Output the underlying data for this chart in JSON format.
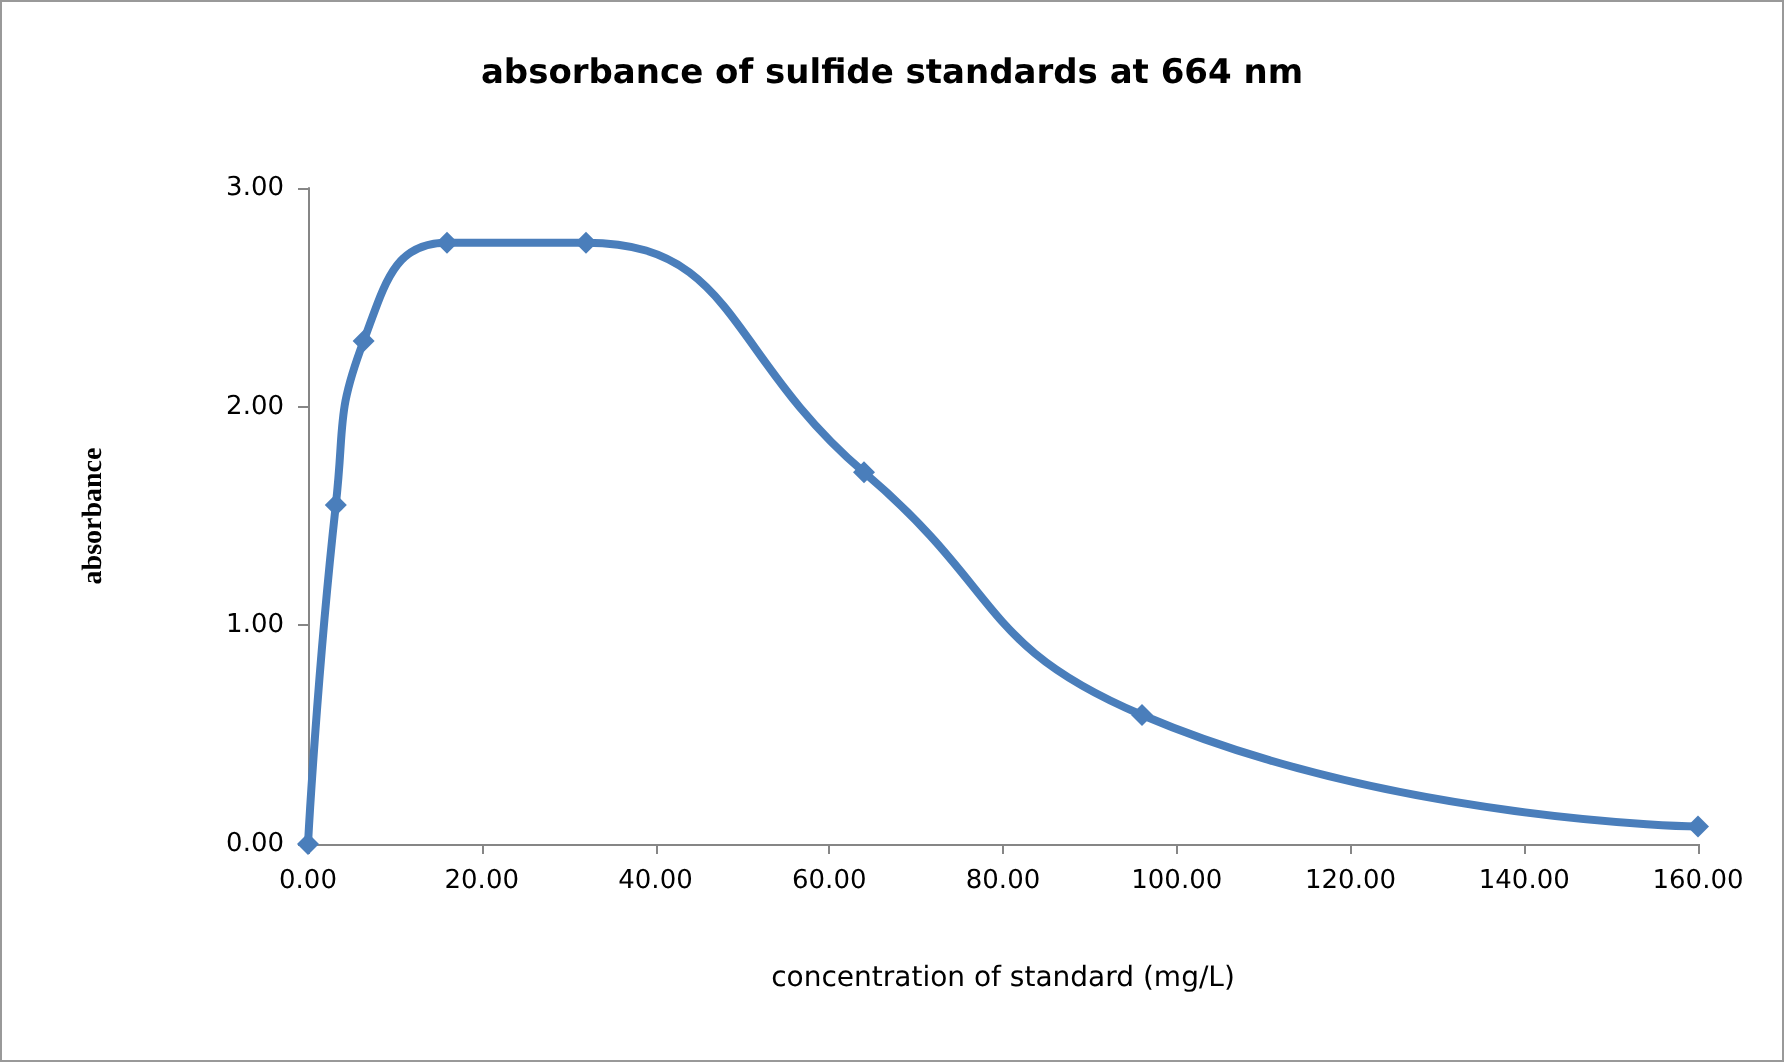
{
  "chart_data": {
    "type": "line",
    "title": "absorbance of sulfide standards at 664 nm",
    "xlabel": "concentration of standard (mg/L)",
    "ylabel": "absorbance",
    "x": [
      0,
      3.2,
      6.4,
      16,
      32,
      64,
      96,
      160
    ],
    "series": [
      {
        "color": "#4a7ebb",
        "values": [
          0,
          1.55,
          2.3,
          2.75,
          2.75,
          1.7,
          0.59,
          0.08
        ]
      }
    ],
    "xlim": [
      0,
      160
    ],
    "xticks": [
      {
        "value": 0,
        "label": "0.00"
      },
      {
        "value": 20,
        "label": "20.00"
      },
      {
        "value": 40,
        "label": "40.00"
      },
      {
        "value": 60,
        "label": "60.00"
      },
      {
        "value": 80,
        "label": "80.00"
      },
      {
        "value": 100,
        "label": "100.00"
      },
      {
        "value": 120,
        "label": "120.00"
      },
      {
        "value": 140,
        "label": "140.00"
      },
      {
        "value": 160,
        "label": "160.00"
      }
    ],
    "ylim": [
      0,
      3
    ],
    "yticks": [
      {
        "value": 0,
        "label": "0.00"
      },
      {
        "value": 1,
        "label": "1.00"
      },
      {
        "value": 2,
        "label": "2.00"
      },
      {
        "value": 3,
        "label": "3.00"
      }
    ],
    "grid": false,
    "marker": "diamond",
    "line_style": "solid"
  }
}
